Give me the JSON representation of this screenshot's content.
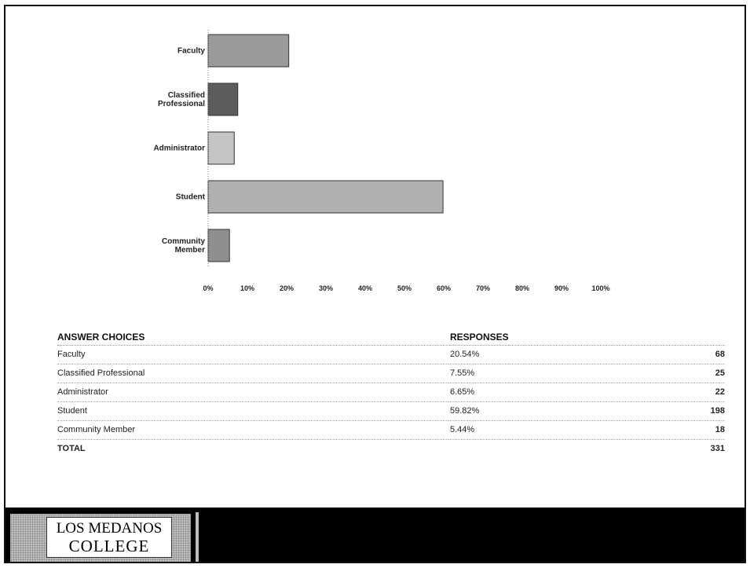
{
  "chart_data": {
    "type": "bar",
    "orientation": "horizontal",
    "categories": [
      "Faculty",
      "Classified Professional",
      "Administrator",
      "Student",
      "Community Member"
    ],
    "category_lines": [
      [
        "Faculty"
      ],
      [
        "Classified",
        "Professional"
      ],
      [
        "Administrator"
      ],
      [
        "Student"
      ],
      [
        "Community",
        "Member"
      ]
    ],
    "values": [
      20.54,
      7.55,
      6.65,
      59.82,
      5.44
    ],
    "xlim": [
      0,
      100
    ],
    "xticks": [
      "0%",
      "10%",
      "20%",
      "30%",
      "40%",
      "50%",
      "60%",
      "70%",
      "80%",
      "90%",
      "100%"
    ],
    "grid": false,
    "bar_colors": [
      "#9a9a9a",
      "#5c5c5c",
      "#c4c4c4",
      "#b0b0b0",
      "#8f8f8f"
    ]
  },
  "table": {
    "headers": {
      "choice": "ANSWER CHOICES",
      "responses": "RESPONSES"
    },
    "rows": [
      {
        "choice": "Faculty",
        "percent": "20.54%",
        "count": "68"
      },
      {
        "choice": "Classified Professional",
        "percent": "7.55%",
        "count": "25"
      },
      {
        "choice": "Administrator",
        "percent": "6.65%",
        "count": "22"
      },
      {
        "choice": "Student",
        "percent": "59.82%",
        "count": "198"
      },
      {
        "choice": "Community Member",
        "percent": "5.44%",
        "count": "18"
      }
    ],
    "total": {
      "label": "TOTAL",
      "count": "331"
    }
  },
  "footer": {
    "logo_line1": "LOS MEDANOS",
    "logo_line2": "COLLEGE"
  }
}
